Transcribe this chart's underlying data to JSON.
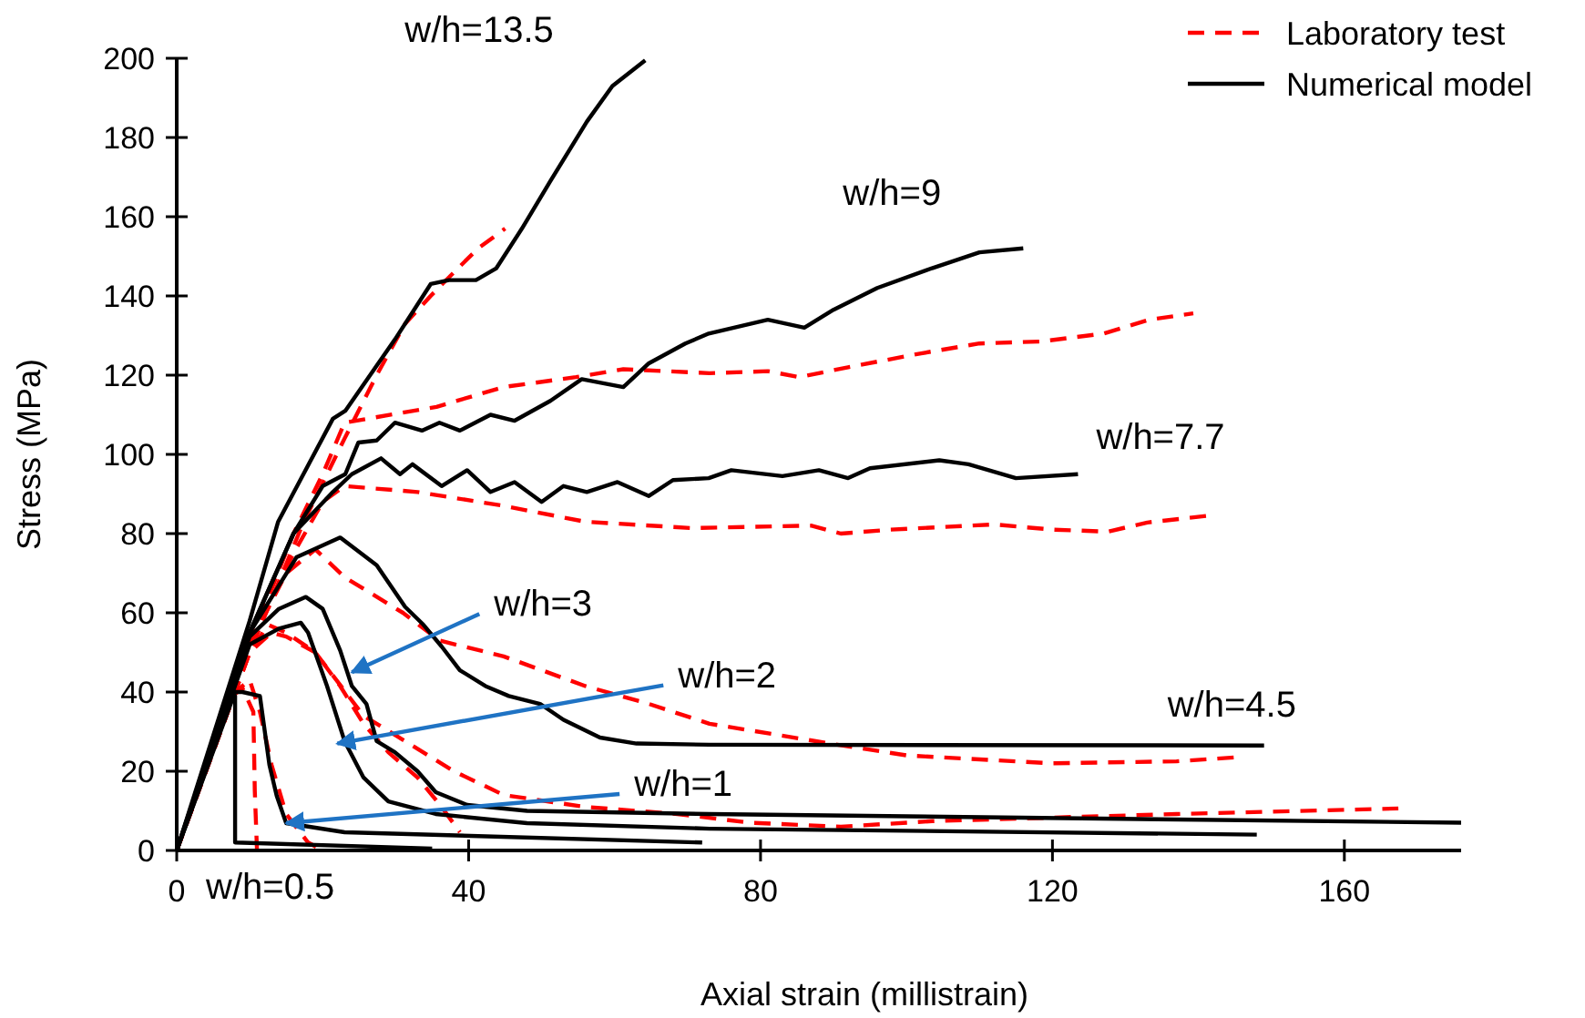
{
  "chart_data": {
    "type": "line",
    "xlabel": "Axial strain (millistrain)",
    "ylabel": "Stress (MPa)",
    "xlim": [
      0,
      176
    ],
    "ylim": [
      0,
      200
    ],
    "xticks": [
      0,
      40,
      80,
      120,
      160
    ],
    "yticks": [
      0,
      20,
      40,
      60,
      80,
      100,
      120,
      140,
      160,
      180,
      200
    ],
    "grid": false,
    "legend": "top right",
    "marker": "none",
    "series": [
      {
        "name": "Laboratory test",
        "color": "#ff0000",
        "line_style": "dashed",
        "x": [
          0,
          10,
          17.4,
          23,
          27.4,
          31.3,
          34.8,
          38,
          41.3,
          45
        ],
        "values": [
          0,
          50,
          83,
          104,
          120,
          133,
          140,
          146,
          152,
          157
        ]
      },
      {
        "color": "#ff0000",
        "line_style": "dashed",
        "x": [
          0,
          10,
          16,
          20,
          23,
          35.6,
          44.8,
          54.7,
          61.2,
          73,
          81,
          85.3,
          92,
          102,
          110,
          118.4,
          127,
          133.3,
          139.3
        ],
        "values": [
          0,
          52,
          80,
          95,
          108,
          112,
          117,
          119.5,
          121.5,
          120.5,
          121,
          119.5,
          122,
          125.5,
          128,
          128.5,
          130.5,
          134,
          135.6
        ]
      },
      {
        "color": "#ff0000",
        "line_style": "dashed",
        "x": [
          0,
          10,
          16,
          20,
          23,
          33,
          44.8,
          56,
          70.4,
          87,
          91,
          97.8,
          112,
          120,
          127.6,
          133,
          141.8
        ],
        "values": [
          0,
          52,
          75,
          88,
          92,
          90.5,
          87,
          83,
          81.4,
          82,
          80,
          81,
          82.3,
          81,
          80.5,
          82.8,
          84.6
        ]
      },
      {
        "color": "#ff0000",
        "line_style": "dashed",
        "x": [
          0,
          10,
          15,
          19,
          23,
          31,
          36,
          44.8,
          56,
          64.7,
          73,
          89.5,
          100,
          120,
          137,
          145
        ],
        "values": [
          0,
          52,
          70,
          76,
          69,
          60,
          53,
          49,
          41.5,
          37,
          32,
          27,
          24,
          22,
          22.5,
          23.5
        ]
      },
      {
        "color": "#ff0000",
        "line_style": "dashed",
        "x": [
          0,
          10,
          12.5,
          15,
          19,
          25.6,
          31.3,
          38,
          44.8,
          56,
          68.6,
          78.6,
          91,
          103.5,
          120,
          137,
          167.4
        ],
        "values": [
          0,
          50,
          57,
          55,
          50,
          34,
          27.6,
          20,
          14,
          11,
          9.2,
          7,
          6,
          7.4,
          8.3,
          9.2,
          10.6
        ]
      },
      {
        "color": "#ff0000",
        "line_style": "dashed",
        "x": [
          0,
          10,
          13,
          15,
          19,
          22.4,
          25.6,
          29,
          33,
          36.3,
          38.8
        ],
        "values": [
          0,
          50,
          55,
          54,
          50,
          41.5,
          32,
          24.8,
          18.4,
          11,
          4.6
        ]
      },
      {
        "color": "#ff0000",
        "line_style": "dashed",
        "x": [
          0,
          8,
          10,
          11.4,
          13,
          15,
          18,
          20
        ],
        "values": [
          0,
          40,
          43,
          35,
          21.6,
          9.2,
          2,
          0
        ]
      },
      {
        "color": "#ff0000",
        "line_style": "dashed",
        "x": [
          0,
          7,
          9,
          10.5,
          10.7,
          11
        ],
        "values": [
          0,
          38,
          41,
          35,
          15,
          0
        ]
      },
      {
        "name": "Numerical model",
        "color": "#000000",
        "line_style": "solid",
        "x": [
          0,
          10,
          13.9,
          21.4,
          23.1,
          29.9,
          34.8,
          37.3,
          41,
          43.8,
          47.3,
          51.2,
          56.2,
          59.7,
          64.2
        ],
        "values": [
          0,
          58,
          83,
          109,
          111,
          129,
          143,
          144,
          144,
          147,
          157,
          169,
          184,
          193,
          199.5
        ]
      },
      {
        "color": "#000000",
        "line_style": "solid",
        "x": [
          0,
          10,
          16,
          20,
          23.1,
          24.9,
          27.4,
          29.9,
          33.6,
          36,
          38.8,
          43,
          46.3,
          51.2,
          55.5,
          61.2,
          64.7,
          69.7,
          72.9,
          81,
          86,
          90,
          96,
          103.5,
          110,
          116
        ],
        "values": [
          0,
          55,
          80,
          92,
          95,
          103,
          103.5,
          108,
          106,
          108,
          106,
          110,
          108.5,
          113.5,
          119,
          117,
          123,
          128,
          130.5,
          134,
          132,
          136.5,
          142,
          147,
          151,
          152
        ]
      },
      {
        "color": "#000000",
        "line_style": "solid",
        "x": [
          0,
          10,
          16,
          21.4,
          24,
          28,
          30.6,
          32.3,
          36.3,
          39.8,
          43,
          46.3,
          50,
          53,
          56.2,
          60.4,
          64.7,
          68,
          72.9,
          76,
          83,
          88,
          92,
          95,
          104.5,
          108.5,
          115,
          123.5
        ],
        "values": [
          0,
          55,
          80,
          90.5,
          95,
          99,
          95,
          97.5,
          92,
          96,
          90.5,
          93,
          88,
          92,
          90.5,
          93,
          89.5,
          93.5,
          94,
          96,
          94.5,
          96,
          94,
          96.5,
          98.5,
          97.5,
          94,
          95
        ]
      },
      {
        "color": "#000000",
        "line_style": "solid",
        "x": [
          0,
          10,
          16.4,
          22.4,
          27.4,
          31.3,
          33.8,
          36.3,
          38.8,
          42.3,
          45.5,
          49.8,
          53,
          58,
          63,
          73,
          149
        ],
        "values": [
          0,
          55,
          74,
          79,
          72,
          61.5,
          57,
          51.5,
          45.5,
          41.5,
          39,
          37,
          33,
          28.5,
          27,
          26.7,
          26.5
        ]
      },
      {
        "color": "#000000",
        "line_style": "solid",
        "x": [
          0,
          10,
          14,
          17.7,
          20,
          22.4,
          24,
          26,
          27.4,
          29.9,
          33,
          35.5,
          39.8,
          48,
          73,
          176
        ],
        "values": [
          0,
          54,
          61,
          64,
          61,
          50.5,
          41.5,
          37,
          27.6,
          24.8,
          20,
          14.7,
          11.5,
          10,
          9.2,
          7
        ]
      },
      {
        "color": "#000000",
        "line_style": "solid",
        "x": [
          0,
          10,
          14,
          17,
          18,
          20.6,
          23,
          25.6,
          29,
          35.5,
          48,
          73,
          148
        ],
        "values": [
          0,
          52,
          56,
          57.5,
          55,
          41.5,
          27.6,
          18.4,
          12.4,
          9.2,
          6.9,
          5.5,
          4
        ]
      },
      {
        "color": "#000000",
        "line_style": "solid",
        "x": [
          0,
          8,
          9,
          11.4,
          12.7,
          13.7,
          15,
          23,
          72
        ],
        "values": [
          0,
          40,
          40,
          39,
          21.6,
          13.8,
          6.9,
          4.6,
          2
        ]
      },
      {
        "color": "#000000",
        "line_style": "solid",
        "x": [
          0,
          7.5,
          8,
          8,
          35
        ],
        "values": [
          0,
          38,
          39,
          2,
          0.5
        ]
      }
    ],
    "annotations": [
      {
        "text": "w/h=13.5",
        "x": 64.2,
        "y": 199.5
      },
      {
        "text": "w/h=9",
        "x": 116,
        "y": 152
      },
      {
        "text": "w/h=7.7",
        "x": 123.5,
        "y": 95
      },
      {
        "text": "w/h=4.5",
        "x": 149,
        "y": 26.5
      },
      {
        "text": "w/h=3",
        "x": 24,
        "y": 45
      },
      {
        "text": "w/h=2",
        "x": 22,
        "y": 27
      },
      {
        "text": "w/h=1",
        "x": 15,
        "y": 6.9
      },
      {
        "text": "w/h=0.5",
        "x": 8,
        "y": 2
      }
    ]
  }
}
